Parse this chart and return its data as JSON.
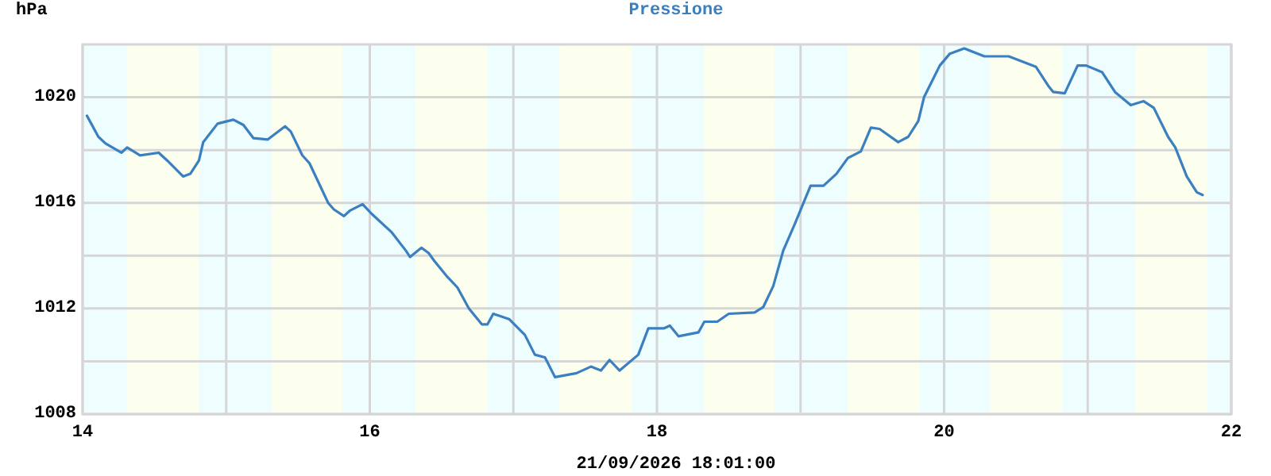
{
  "chart_data": {
    "type": "line",
    "title": "Pressione",
    "ylabel": "hPa",
    "xlabel": "21/09/2026 18:01:00",
    "xlim": [
      14,
      22
    ],
    "xticks": [
      14,
      {
        "value": 15,
        "label": null
      },
      16,
      {
        "value": 17,
        "label": null
      },
      18,
      {
        "value": 19,
        "label": null
      },
      20,
      {
        "value": 21,
        "label": null
      },
      22
    ],
    "ylim": [
      1008,
      1022
    ],
    "yticks": [
      1008,
      {
        "value": 1010,
        "label": null
      },
      1012,
      {
        "value": 1014,
        "label": null
      },
      1016,
      {
        "value": 1018,
        "label": null
      },
      1020
    ],
    "grid": true,
    "bands": [
      {
        "axis": "x",
        "from": 14,
        "to": 14.31,
        "color": "#eefdfd"
      },
      {
        "axis": "x",
        "from": 14.31,
        "to": 14.81,
        "color": "#fdffee"
      },
      {
        "axis": "x",
        "from": 14.81,
        "to": 15.32,
        "color": "#eefdfd"
      },
      {
        "axis": "x",
        "from": 15.32,
        "to": 15.81,
        "color": "#fdffee"
      },
      {
        "axis": "x",
        "from": 15.81,
        "to": 16.32,
        "color": "#eefdfd"
      },
      {
        "axis": "x",
        "from": 16.32,
        "to": 16.82,
        "color": "#fdffee"
      },
      {
        "axis": "x",
        "from": 16.82,
        "to": 17.32,
        "color": "#eefdfd"
      },
      {
        "axis": "x",
        "from": 17.32,
        "to": 17.83,
        "color": "#fdffee"
      },
      {
        "axis": "x",
        "from": 17.83,
        "to": 18.33,
        "color": "#eefdfd"
      },
      {
        "axis": "x",
        "from": 18.33,
        "to": 18.82,
        "color": "#fdffee"
      },
      {
        "axis": "x",
        "from": 18.82,
        "to": 19.33,
        "color": "#eefdfd"
      },
      {
        "axis": "x",
        "from": 19.33,
        "to": 19.83,
        "color": "#fdffee"
      },
      {
        "axis": "x",
        "from": 19.83,
        "to": 20.32,
        "color": "#eefdfd"
      },
      {
        "axis": "x",
        "from": 20.32,
        "to": 20.82,
        "color": "#fdffee"
      },
      {
        "axis": "x",
        "from": 20.82,
        "to": 21.33,
        "color": "#eefdfd"
      },
      {
        "axis": "x",
        "from": 21.33,
        "to": 21.83,
        "color": "#fdffee"
      },
      {
        "axis": "x",
        "from": 21.83,
        "to": 22,
        "color": "#eefdfd"
      }
    ],
    "series": [
      {
        "color": "#3a7fbf",
        "x": [
          14.03,
          14.11,
          14.16,
          14.27,
          14.31,
          14.4,
          14.53,
          14.59,
          14.7,
          14.75,
          14.81,
          14.84,
          14.94,
          15.05,
          15.12,
          15.19,
          15.29,
          15.41,
          15.45,
          15.53,
          15.58,
          15.71,
          15.75,
          15.82,
          15.86,
          15.95,
          16.01,
          16.15,
          16.25,
          16.28,
          16.36,
          16.41,
          16.45,
          16.54,
          16.61,
          16.69,
          16.78,
          16.82,
          16.86,
          16.97,
          17.08,
          17.15,
          17.22,
          17.29,
          17.44,
          17.54,
          17.61,
          17.67,
          17.74,
          17.87,
          17.94,
          18.05,
          18.09,
          18.15,
          18.29,
          18.33,
          18.42,
          18.5,
          18.68,
          18.74,
          18.81,
          18.88,
          18.96,
          19.07,
          19.16,
          19.25,
          19.33,
          19.42,
          19.49,
          19.55,
          19.68,
          19.75,
          19.82,
          19.86,
          19.97,
          20.04,
          20.14,
          20.28,
          20.45,
          20.64,
          20.73,
          20.76,
          20.84,
          20.93,
          20.99,
          21.1,
          21.19,
          21.3,
          21.39,
          21.46,
          21.56,
          21.61,
          21.69,
          21.76,
          21.8
        ],
        "values": [
          1019.3,
          1018.5,
          1018.25,
          1017.9,
          1018.1,
          1017.8,
          1017.9,
          1017.6,
          1017.0,
          1017.1,
          1017.6,
          1018.3,
          1019.0,
          1019.15,
          1018.95,
          1018.45,
          1018.4,
          1018.9,
          1018.7,
          1017.8,
          1017.5,
          1016.0,
          1015.75,
          1015.5,
          1015.7,
          1015.95,
          1015.6,
          1014.9,
          1014.2,
          1013.95,
          1014.3,
          1014.1,
          1013.8,
          1013.2,
          1012.8,
          1012.0,
          1011.4,
          1011.4,
          1011.8,
          1011.6,
          1011.0,
          1010.25,
          1010.15,
          1009.4,
          1009.55,
          1009.8,
          1009.65,
          1010.05,
          1009.65,
          1010.25,
          1011.25,
          1011.25,
          1011.35,
          1010.95,
          1011.1,
          1011.5,
          1011.5,
          1011.8,
          1011.85,
          1012.05,
          1012.85,
          1014.2,
          1015.2,
          1016.65,
          1016.65,
          1017.1,
          1017.7,
          1017.95,
          1018.85,
          1018.8,
          1018.3,
          1018.5,
          1019.1,
          1020.0,
          1021.2,
          1021.65,
          1021.85,
          1021.55,
          1021.55,
          1021.15,
          1020.4,
          1020.2,
          1020.15,
          1021.2,
          1021.2,
          1020.95,
          1020.2,
          1019.7,
          1019.85,
          1019.6,
          1018.5,
          1018.1,
          1017.0,
          1016.4,
          1016.3
        ]
      }
    ]
  }
}
